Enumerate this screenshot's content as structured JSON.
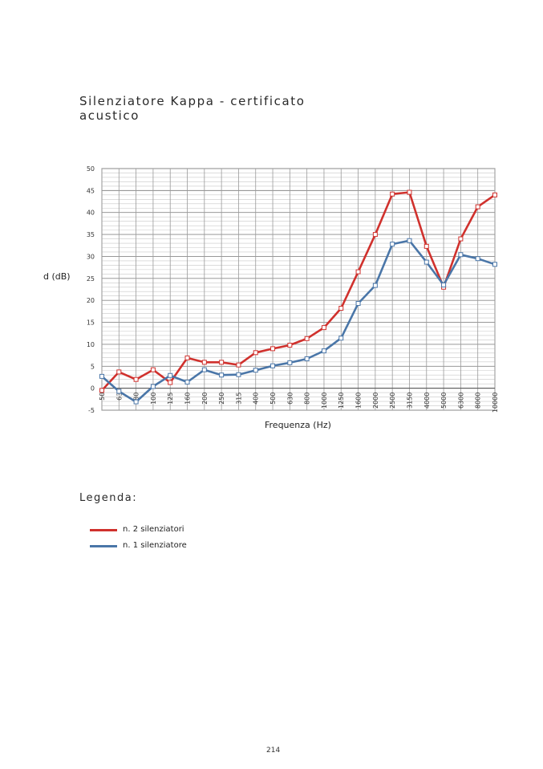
{
  "page": {
    "title": "Silenziatore Kappa - certificato acustico",
    "legend_title": "Legenda:",
    "page_number": "214"
  },
  "chart_data": {
    "type": "line",
    "title": "",
    "xlabel": "Frequenza (Hz)",
    "ylabel": "d (dB)",
    "x": [
      "50",
      "63",
      "80",
      "100",
      "125",
      "160",
      "200",
      "250",
      "315",
      "400",
      "500",
      "630",
      "800",
      "1000",
      "1250",
      "1600",
      "2000",
      "2500",
      "3150",
      "4000",
      "5000",
      "6300",
      "8000",
      "10000"
    ],
    "ylim": [
      -5,
      50
    ],
    "yticks": [
      -5,
      0,
      5,
      10,
      15,
      20,
      25,
      30,
      35,
      40,
      45,
      50
    ],
    "grid": true,
    "series": [
      {
        "name": "n. 2 silenziatori",
        "color": "#d0312d",
        "values": [
          -0.5,
          3.7,
          2.0,
          4.2,
          1.3,
          6.9,
          5.9,
          5.9,
          5.3,
          8.1,
          9.0,
          9.8,
          11.3,
          13.8,
          18.2,
          26.5,
          35.0,
          44.2,
          44.6,
          32.3,
          23.0,
          34.0,
          41.3,
          44.0
        ]
      },
      {
        "name": "n. 1 silenziatore",
        "color": "#4a76a8",
        "values": [
          2.7,
          -0.7,
          -3.1,
          0.4,
          2.9,
          1.4,
          4.2,
          3.0,
          3.1,
          4.1,
          5.1,
          5.8,
          6.7,
          8.5,
          11.4,
          19.3,
          23.4,
          32.8,
          33.6,
          28.7,
          23.5,
          30.4,
          29.5,
          28.2
        ]
      }
    ],
    "legend_placement": "bottom"
  }
}
